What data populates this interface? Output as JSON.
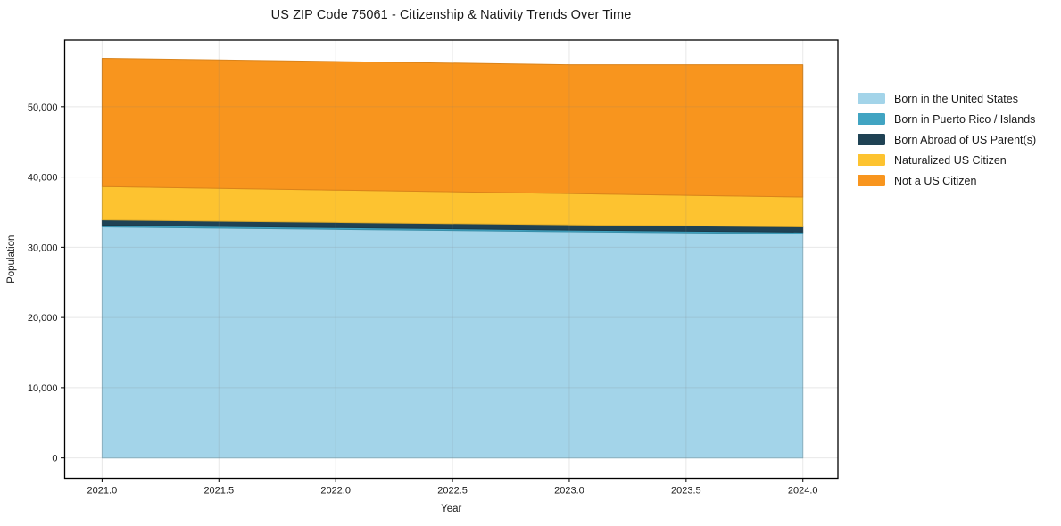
{
  "title": "US ZIP Code 75061 - Citizenship & Nativity Trends Over Time",
  "chart_data": {
    "type": "area",
    "stacked": true,
    "title": "US ZIP Code 75061 - Citizenship & Nativity Trends Over Time",
    "xlabel": "Year",
    "ylabel": "Population",
    "x": [
      2021,
      2022,
      2023,
      2024
    ],
    "series": [
      {
        "name": "Born in the United States",
        "color": "#a3d4e9",
        "values": [
          32900,
          32550,
          32200,
          31900
        ]
      },
      {
        "name": "Born in Puerto Rico / Islands",
        "color": "#41a4c2",
        "values": [
          260,
          260,
          250,
          250
        ]
      },
      {
        "name": "Born Abroad of US Parent(s)",
        "color": "#1f4254",
        "values": [
          740,
          740,
          750,
          750
        ]
      },
      {
        "name": "Naturalized US Citizen",
        "color": "#fdc330",
        "values": [
          4750,
          4600,
          4450,
          4250
        ]
      },
      {
        "name": "Not a US Citizen",
        "color": "#f8951e",
        "values": [
          18250,
          18300,
          18350,
          18850
        ]
      }
    ],
    "xlim": [
      2020.84,
      2024.15
    ],
    "ylim": [
      -2900,
      59500
    ],
    "xticks": [
      2021.0,
      2021.5,
      2022.0,
      2022.5,
      2023.0,
      2023.5,
      2024.0
    ],
    "yticks": [
      0,
      10000,
      20000,
      30000,
      40000,
      50000
    ],
    "grid": true,
    "grid_color": "#e7e7e7",
    "legend_position": "right",
    "x_tick_format": "one_decimal",
    "y_tick_format": "comma"
  }
}
